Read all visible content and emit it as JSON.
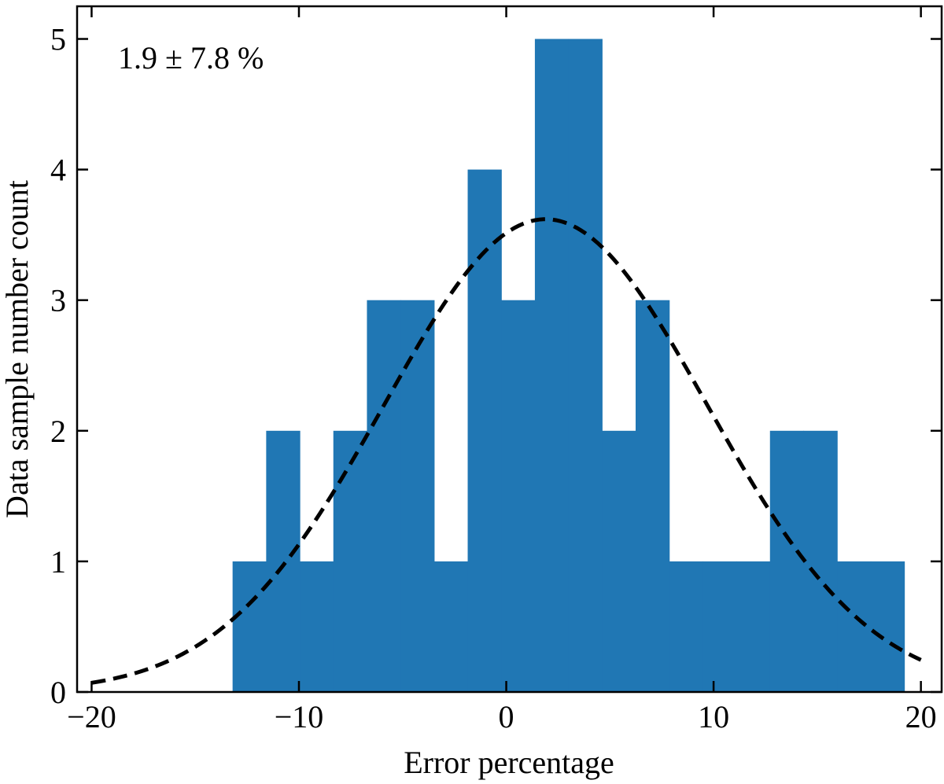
{
  "chart_data": {
    "type": "bar",
    "subtype": "histogram",
    "title": "",
    "xlabel": "Error percentage",
    "ylabel": "Data sample number count",
    "xlim": [
      -20.7,
      21
    ],
    "ylim": [
      0,
      5.25
    ],
    "xticks": [
      -20,
      -10,
      0,
      10,
      20
    ],
    "xtick_labels": [
      "−20",
      "−10",
      "0",
      "10",
      "20"
    ],
    "yticks": [
      0,
      1,
      2,
      3,
      4,
      5
    ],
    "ytick_labels": [
      "0",
      "1",
      "2",
      "3",
      "4",
      "5"
    ],
    "bin_edges": [
      -13.2,
      -11.58,
      -9.96,
      -8.34,
      -6.72,
      -5.1,
      -3.48,
      -1.86,
      -0.24,
      1.38,
      3.0,
      4.62,
      6.24,
      7.86,
      9.48,
      11.1,
      12.72,
      14.34,
      15.96,
      17.58,
      19.2
    ],
    "counts": [
      1,
      2,
      1,
      2,
      3,
      3,
      1,
      4,
      3,
      5,
      5,
      2,
      3,
      1,
      1,
      1,
      2,
      2,
      1,
      1
    ],
    "bar_color": "#2077b4",
    "fit_curve": {
      "type": "gaussian",
      "mean": 1.9,
      "std": 7.8,
      "peak": 3.62,
      "x_range": [
        -20,
        20
      ],
      "style": "dashed",
      "color": "#000000"
    },
    "annotation": "1.9 ± 7.8 %",
    "annotation_position": "top-left",
    "grid": false,
    "legend": "none"
  }
}
